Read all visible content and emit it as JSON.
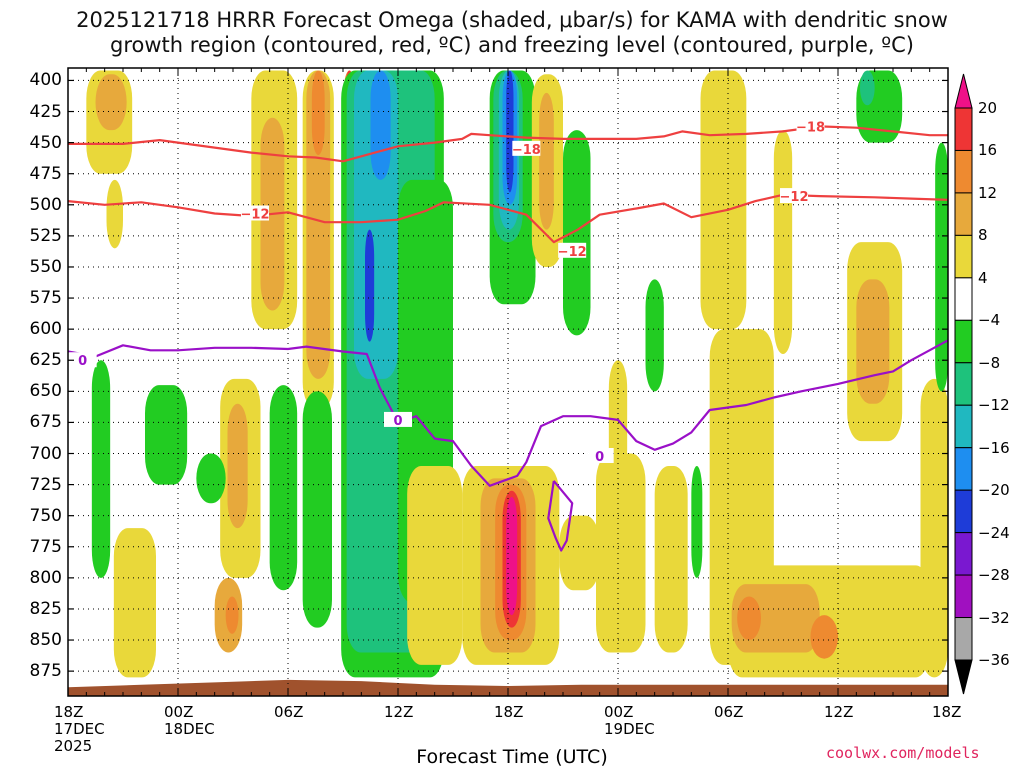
{
  "title_line1": "2025121718 HRRR Forecast Omega (shaded, μbar/s) for KAMA with dendritic snow",
  "title_line2": "growth region (contoured, red, ºC) and freezing level (contoured, purple, ºC)",
  "credit": "coolwx.com/models",
  "colors": {
    "dgz_contour": "#ee4040",
    "freezing_contour": "#9a10c8",
    "terrain": "#a0522d"
  },
  "chart_data": {
    "type": "heatmap",
    "title": "2025121718 HRRR Forecast Omega (shaded, μbar/s) for KAMA with dendritic snow growth region (contoured, red, ºC) and freezing level (contoured, purple, ºC)",
    "xlabel": "Forecast Time (UTC)",
    "ylabel": "",
    "x_range_hours": [
      0,
      48
    ],
    "y_axis": {
      "reversed": true,
      "range": [
        390,
        895
      ],
      "tick_values": [
        400,
        425,
        450,
        475,
        500,
        525,
        550,
        575,
        600,
        625,
        650,
        675,
        700,
        725,
        750,
        775,
        800,
        825,
        850,
        875
      ]
    },
    "x_ticks": [
      {
        "hour": 0,
        "line1": "18Z",
        "line2": "17DEC",
        "line3": "2025"
      },
      {
        "hour": 6,
        "line1": "00Z",
        "line2": "18DEC",
        "line3": ""
      },
      {
        "hour": 12,
        "line1": "06Z",
        "line2": "",
        "line3": ""
      },
      {
        "hour": 18,
        "line1": "12Z",
        "line2": "",
        "line3": ""
      },
      {
        "hour": 24,
        "line1": "18Z",
        "line2": "",
        "line3": ""
      },
      {
        "hour": 30,
        "line1": "00Z",
        "line2": "19DEC",
        "line3": ""
      },
      {
        "hour": 36,
        "line1": "06Z",
        "line2": "",
        "line3": ""
      },
      {
        "hour": 42,
        "line1": "12Z",
        "line2": "",
        "line3": ""
      },
      {
        "hour": 48,
        "line1": "18Z",
        "line2": "",
        "line3": ""
      }
    ],
    "grid": true,
    "colorbar": {
      "labels": [
        "20",
        "16",
        "12",
        "8",
        "4",
        "−4",
        "−8",
        "−12",
        "−16",
        "−20",
        "−24",
        "−28",
        "−32",
        "−36"
      ],
      "bins": [
        {
          "lo": 16,
          "hi": 20,
          "color": "#ee3535"
        },
        {
          "lo": 12,
          "hi": 16,
          "color": "#ee8a30"
        },
        {
          "lo": 8,
          "hi": 12,
          "color": "#e7a93c"
        },
        {
          "lo": 4,
          "hi": 8,
          "color": "#e9d83a"
        },
        {
          "lo": -4,
          "hi": 4,
          "color": "#ffffff"
        },
        {
          "lo": -8,
          "hi": -4,
          "color": "#22cc22"
        },
        {
          "lo": -12,
          "hi": -8,
          "color": "#1ec27c"
        },
        {
          "lo": -16,
          "hi": -12,
          "color": "#20b8c0"
        },
        {
          "lo": -20,
          "hi": -16,
          "color": "#1e8ef0"
        },
        {
          "lo": -24,
          "hi": -20,
          "color": "#1e3cd8"
        },
        {
          "lo": -28,
          "hi": -24,
          "color": "#7a18d0"
        },
        {
          "lo": -32,
          "hi": -28,
          "color": "#a010c0"
        },
        {
          "lo": -36,
          "hi": -32,
          "color": "#a8a8a8"
        }
      ],
      "top_cap_color": "#ee1188",
      "bottom_cap_color": "#000000"
    },
    "omega_regions": [
      {
        "value": 6,
        "t0": 1.0,
        "t1": 3.5,
        "p0": 392,
        "p1": 475
      },
      {
        "value": 10,
        "t0": 1.5,
        "t1": 3.2,
        "p0": 395,
        "p1": 440
      },
      {
        "value": 6,
        "t0": 2.1,
        "t1": 3.0,
        "p0": 480,
        "p1": 535
      },
      {
        "value": 6,
        "t0": 10.0,
        "t1": 12.5,
        "p0": 392,
        "p1": 600
      },
      {
        "value": 10,
        "t0": 10.5,
        "t1": 11.8,
        "p0": 430,
        "p1": 585
      },
      {
        "value": 6,
        "t0": 12.8,
        "t1": 14.5,
        "p0": 392,
        "p1": 665
      },
      {
        "value": 10,
        "t0": 13.0,
        "t1": 14.3,
        "p0": 392,
        "p1": 640
      },
      {
        "value": 14,
        "t0": 13.3,
        "t1": 14.0,
        "p0": 392,
        "p1": 460
      },
      {
        "value": 14,
        "t0": 15.0,
        "t1": 15.7,
        "p0": 392,
        "p1": 470
      },
      {
        "value": 18,
        "t0": 15.1,
        "t1": 15.6,
        "p0": 392,
        "p1": 450
      },
      {
        "value": -6,
        "t0": 14.9,
        "t1": 20.5,
        "p0": 392,
        "p1": 880
      },
      {
        "value": -10,
        "t0": 15.2,
        "t1": 19.8,
        "p0": 392,
        "p1": 860
      },
      {
        "value": -14,
        "t0": 15.6,
        "t1": 18.0,
        "p0": 392,
        "p1": 640
      },
      {
        "value": -18,
        "t0": 16.5,
        "t1": 17.6,
        "p0": 392,
        "p1": 480
      },
      {
        "value": -22,
        "t0": 16.2,
        "t1": 16.7,
        "p0": 520,
        "p1": 610
      },
      {
        "value": -10,
        "t0": 18.5,
        "t1": 20.0,
        "p0": 392,
        "p1": 530
      },
      {
        "value": -6,
        "t0": 18.0,
        "t1": 21.0,
        "p0": 480,
        "p1": 820
      },
      {
        "value": -6,
        "t0": 23.0,
        "t1": 25.5,
        "p0": 392,
        "p1": 580
      },
      {
        "value": -10,
        "t0": 23.2,
        "t1": 24.8,
        "p0": 392,
        "p1": 530
      },
      {
        "value": -14,
        "t0": 23.5,
        "t1": 24.6,
        "p0": 392,
        "p1": 520
      },
      {
        "value": -18,
        "t0": 23.7,
        "t1": 24.5,
        "p0": 392,
        "p1": 500
      },
      {
        "value": -22,
        "t0": 23.9,
        "t1": 24.3,
        "p0": 392,
        "p1": 490
      },
      {
        "value": -6,
        "t0": 24.6,
        "t1": 25.8,
        "p0": 740,
        "p1": 860
      },
      {
        "value": 6,
        "t0": 25.3,
        "t1": 27.0,
        "p0": 395,
        "p1": 550
      },
      {
        "value": 10,
        "t0": 25.7,
        "t1": 26.5,
        "p0": 410,
        "p1": 520
      },
      {
        "value": 6,
        "t0": 21.5,
        "t1": 26.8,
        "p0": 710,
        "p1": 870
      },
      {
        "value": 10,
        "t0": 22.5,
        "t1": 25.5,
        "p0": 720,
        "p1": 860
      },
      {
        "value": 14,
        "t0": 23.3,
        "t1": 25.0,
        "p0": 725,
        "p1": 850
      },
      {
        "value": 18,
        "t0": 23.7,
        "t1": 24.7,
        "p0": 730,
        "p1": 840
      },
      {
        "value": 24,
        "t0": 23.9,
        "t1": 24.5,
        "p0": 735,
        "p1": 830
      },
      {
        "value": -6,
        "t0": 27.0,
        "t1": 28.5,
        "p0": 440,
        "p1": 605
      },
      {
        "value": -6,
        "t0": 31.5,
        "t1": 32.5,
        "p0": 560,
        "p1": 650
      },
      {
        "value": 6,
        "t0": 34.5,
        "t1": 37.0,
        "p0": 392,
        "p1": 600
      },
      {
        "value": 6,
        "t0": 35.0,
        "t1": 38.5,
        "p0": 600,
        "p1": 870
      },
      {
        "value": 6,
        "t0": 36.0,
        "t1": 47.0,
        "p0": 790,
        "p1": 880
      },
      {
        "value": 10,
        "t0": 36.2,
        "t1": 41.0,
        "p0": 805,
        "p1": 860
      },
      {
        "value": 14,
        "t0": 36.5,
        "t1": 37.8,
        "p0": 815,
        "p1": 850
      },
      {
        "value": 14,
        "t0": 40.5,
        "t1": 42.0,
        "p0": 830,
        "p1": 865
      },
      {
        "value": 6,
        "t0": 42.5,
        "t1": 45.5,
        "p0": 530,
        "p1": 690
      },
      {
        "value": 10,
        "t0": 43.0,
        "t1": 44.8,
        "p0": 560,
        "p1": 660
      },
      {
        "value": -6,
        "t0": 43.0,
        "t1": 45.5,
        "p0": 392,
        "p1": 450
      },
      {
        "value": -10,
        "t0": 43.2,
        "t1": 44.0,
        "p0": 392,
        "p1": 420
      },
      {
        "value": 6,
        "t0": 2.5,
        "t1": 4.8,
        "p0": 760,
        "p1": 880
      },
      {
        "value": 10,
        "t0": 8.0,
        "t1": 9.5,
        "p0": 800,
        "p1": 860
      },
      {
        "value": 14,
        "t0": 8.6,
        "t1": 9.3,
        "p0": 815,
        "p1": 845
      },
      {
        "value": 6,
        "t0": 8.3,
        "t1": 10.5,
        "p0": 640,
        "p1": 800
      },
      {
        "value": 10,
        "t0": 8.7,
        "t1": 9.8,
        "p0": 660,
        "p1": 760
      },
      {
        "value": -6,
        "t0": 4.2,
        "t1": 6.5,
        "p0": 645,
        "p1": 725
      },
      {
        "value": -6,
        "t0": 1.3,
        "t1": 2.3,
        "p0": 625,
        "p1": 800
      },
      {
        "value": -6,
        "t0": 11.0,
        "t1": 12.5,
        "p0": 645,
        "p1": 810
      },
      {
        "value": -6,
        "t0": 12.8,
        "t1": 14.4,
        "p0": 650,
        "p1": 840
      },
      {
        "value": -6,
        "t0": 7.0,
        "t1": 8.6,
        "p0": 700,
        "p1": 740
      },
      {
        "value": 6,
        "t0": 18.5,
        "t1": 21.5,
        "p0": 710,
        "p1": 870
      },
      {
        "value": 6,
        "t0": 26.8,
        "t1": 29.0,
        "p0": 750,
        "p1": 810
      },
      {
        "value": 6,
        "t0": 28.8,
        "t1": 31.5,
        "p0": 700,
        "p1": 860
      },
      {
        "value": 6,
        "t0": 32.0,
        "t1": 33.8,
        "p0": 710,
        "p1": 860
      },
      {
        "value": -6,
        "t0": 34.0,
        "t1": 34.6,
        "p0": 710,
        "p1": 800
      },
      {
        "value": 6,
        "t0": 46.5,
        "t1": 48.0,
        "p0": 640,
        "p1": 880
      },
      {
        "value": -6,
        "t0": 47.3,
        "t1": 48.0,
        "p0": 450,
        "p1": 650
      },
      {
        "value": 6,
        "t0": 38.5,
        "t1": 39.5,
        "p0": 440,
        "p1": 620
      },
      {
        "value": 6,
        "t0": 29.5,
        "t1": 30.5,
        "p0": 625,
        "p1": 720
      }
    ],
    "terrain_top_hpa": [
      [
        0,
        888
      ],
      [
        4,
        886
      ],
      [
        8,
        884
      ],
      [
        12,
        882
      ],
      [
        16,
        883
      ],
      [
        20,
        886
      ],
      [
        24,
        887
      ],
      [
        28,
        886
      ],
      [
        32,
        886
      ],
      [
        36,
        886
      ],
      [
        40,
        886
      ],
      [
        44,
        886
      ],
      [
        48,
        886
      ]
    ],
    "contours": [
      {
        "name": "-18",
        "color_key": "dgz_contour",
        "label": "−18",
        "label_at": [
          [
            25.0,
            455
          ],
          [
            40.5,
            437
          ]
        ],
        "points": [
          [
            0,
            451
          ],
          [
            3,
            451
          ],
          [
            5,
            448
          ],
          [
            7,
            452
          ],
          [
            10,
            458
          ],
          [
            12,
            461
          ],
          [
            13.5,
            462
          ],
          [
            15,
            465
          ],
          [
            16.5,
            459
          ],
          [
            18,
            453
          ],
          [
            20,
            450
          ],
          [
            21.5,
            447
          ],
          [
            22,
            443
          ],
          [
            23,
            444
          ],
          [
            25,
            446
          ],
          [
            27,
            447
          ],
          [
            29,
            447
          ],
          [
            31,
            447
          ],
          [
            32.5,
            445
          ],
          [
            33.5,
            441
          ],
          [
            35,
            444
          ],
          [
            37,
            443
          ],
          [
            39,
            441
          ],
          [
            41,
            437
          ],
          [
            43,
            438
          ],
          [
            45,
            441
          ],
          [
            47,
            444
          ],
          [
            48,
            444
          ]
        ]
      },
      {
        "name": "-12",
        "color_key": "dgz_contour",
        "label": "−12",
        "label_at": [
          [
            10.2,
            507
          ],
          [
            27.5,
            537
          ],
          [
            39.6,
            493
          ]
        ],
        "points": [
          [
            0,
            497
          ],
          [
            2,
            500
          ],
          [
            4,
            498
          ],
          [
            6,
            502
          ],
          [
            8,
            507
          ],
          [
            10,
            509
          ],
          [
            12,
            506
          ],
          [
            14,
            514
          ],
          [
            16,
            514
          ],
          [
            18,
            512
          ],
          [
            19.5,
            505
          ],
          [
            20.5,
            498
          ],
          [
            23,
            500
          ],
          [
            25,
            508
          ],
          [
            26.5,
            530
          ],
          [
            27.8,
            520
          ],
          [
            29,
            508
          ],
          [
            31,
            503
          ],
          [
            32.5,
            499
          ],
          [
            34,
            510
          ],
          [
            36,
            504
          ],
          [
            37.5,
            497
          ],
          [
            39,
            492
          ],
          [
            41,
            493
          ],
          [
            44,
            494
          ],
          [
            46,
            495
          ],
          [
            48,
            496
          ]
        ]
      },
      {
        "name": "0",
        "color_key": "freezing_contour",
        "label": "0",
        "label_at": [
          [
            0.8,
            625
          ],
          [
            18.0,
            673
          ],
          [
            29.0,
            702
          ]
        ],
        "points": [
          [
            0,
            618
          ],
          [
            1.5,
            622
          ],
          [
            3,
            613
          ],
          [
            4.5,
            617
          ],
          [
            6,
            617
          ],
          [
            8,
            615
          ],
          [
            10,
            615
          ],
          [
            12,
            616
          ],
          [
            13,
            614
          ],
          [
            15,
            618
          ],
          [
            16.3,
            620
          ],
          [
            17,
            647
          ],
          [
            18,
            675
          ],
          [
            19,
            670
          ],
          [
            20,
            688
          ],
          [
            21,
            690
          ],
          [
            22,
            710
          ],
          [
            23,
            726
          ],
          [
            24.5,
            718
          ],
          [
            25,
            707
          ],
          [
            25.8,
            678
          ],
          [
            27,
            670
          ],
          [
            28.5,
            670
          ],
          [
            30,
            673
          ],
          [
            31,
            690
          ],
          [
            32,
            697
          ],
          [
            33,
            692
          ],
          [
            34,
            683
          ],
          [
            35,
            665
          ],
          [
            37,
            661
          ],
          [
            38.5,
            655
          ],
          [
            40,
            650
          ],
          [
            42,
            644
          ],
          [
            44,
            637
          ],
          [
            45,
            634
          ],
          [
            46,
            625
          ],
          [
            48,
            609
          ]
        ]
      },
      {
        "name": "0-loop",
        "color_key": "freezing_contour",
        "label": "",
        "label_at": [],
        "points": [
          [
            26.5,
            722
          ],
          [
            27.5,
            740
          ],
          [
            27.2,
            770
          ],
          [
            26.9,
            778
          ],
          [
            26.6,
            768
          ],
          [
            26.2,
            752
          ],
          [
            26.5,
            722
          ]
        ]
      }
    ]
  }
}
